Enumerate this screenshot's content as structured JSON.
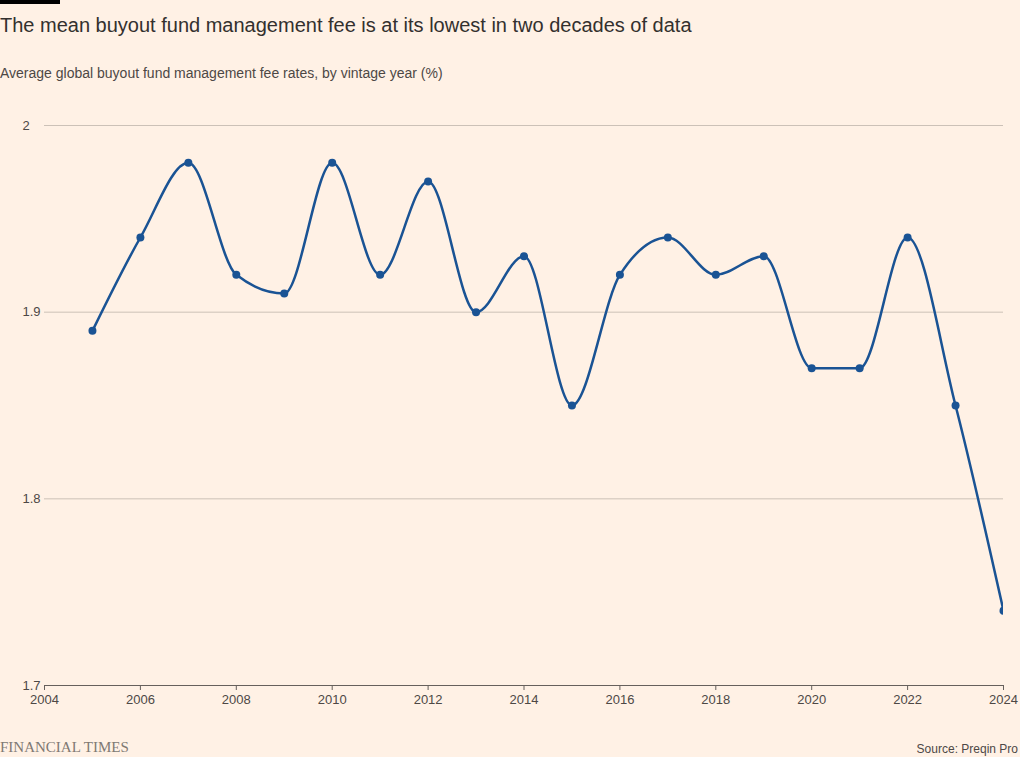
{
  "chart_data": {
    "type": "line",
    "title": "The mean buyout fund management fee is at its lowest in two decades of data",
    "subtitle": "Average global buyout fund management fee rates, by vintage year (%)",
    "source": "Source: Preqin Pro",
    "publisher": "FINANCIAL TIMES",
    "x": [
      2005,
      2006,
      2007,
      2008,
      2009,
      2010,
      2011,
      2012,
      2013,
      2014,
      2015,
      2016,
      2017,
      2018,
      2019,
      2020,
      2021,
      2022,
      2023,
      2024
    ],
    "values": [
      1.89,
      1.94,
      1.98,
      1.92,
      1.91,
      1.98,
      1.92,
      1.97,
      1.9,
      1.93,
      1.85,
      1.92,
      1.94,
      1.92,
      1.93,
      1.87,
      1.87,
      1.94,
      1.85,
      1.74
    ],
    "color": "#1a5394",
    "marker": "circle",
    "xlim": [
      2004,
      2024
    ],
    "xticks": [
      2004,
      2006,
      2008,
      2010,
      2012,
      2014,
      2016,
      2018,
      2020,
      2022,
      2024
    ],
    "ylim": [
      1.7,
      2
    ],
    "yticks": [
      1.7,
      1.8,
      1.9,
      2
    ],
    "grid": true
  }
}
